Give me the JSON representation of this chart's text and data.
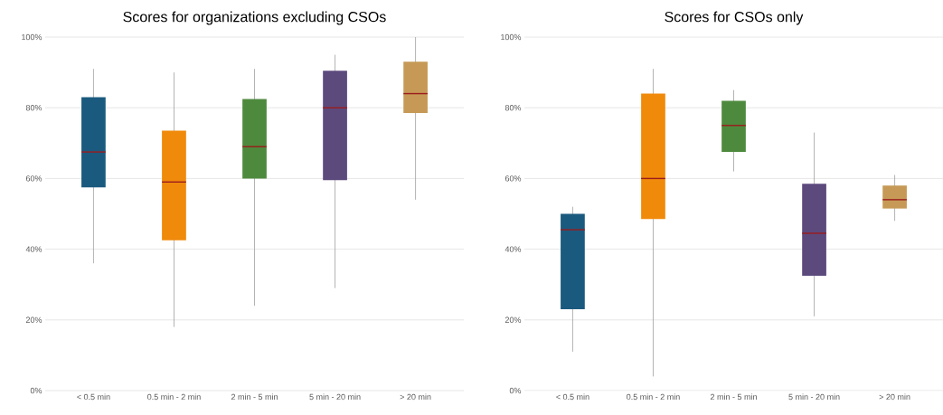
{
  "chart_data": [
    {
      "type": "box",
      "title": "Scores for organizations excluding CSOs",
      "categories": [
        "< 0.5 min",
        "0.5 min - 2 min",
        "2 min - 5 min",
        "5 min - 20 min",
        "> 20 min"
      ],
      "colors": [
        "#1b5a7f",
        "#f08a0b",
        "#4e8a3e",
        "#5c4a7d",
        "#c69a56"
      ],
      "boxes": [
        {
          "low": 36,
          "q1": 57.5,
          "median": 67.5,
          "q3": 83,
          "high": 91
        },
        {
          "low": 18,
          "q1": 42.5,
          "median": 59,
          "q3": 73.5,
          "high": 90
        },
        {
          "low": 24,
          "q1": 60,
          "median": 69,
          "q3": 82.5,
          "high": 91
        },
        {
          "low": 29,
          "q1": 59.5,
          "median": 80,
          "q3": 90.5,
          "high": 95
        },
        {
          "low": 54,
          "q1": 78.5,
          "median": 84,
          "q3": 93,
          "high": 100
        }
      ],
      "ylim": [
        0,
        100
      ],
      "yticks": [
        {
          "value": 0,
          "label": "0%"
        },
        {
          "value": 20,
          "label": "20%"
        },
        {
          "value": 40,
          "label": "40%"
        },
        {
          "value": 60,
          "label": "60%"
        },
        {
          "value": 80,
          "label": "80%"
        },
        {
          "value": 100,
          "label": "100%"
        }
      ],
      "grid": "y"
    },
    {
      "type": "box",
      "title": "Scores for CSOs only",
      "categories": [
        "< 0.5 min",
        "0.5 min - 2 min",
        "2 min - 5 min",
        "5 min - 20 min",
        "> 20 min"
      ],
      "colors": [
        "#1b5a7f",
        "#f08a0b",
        "#4e8a3e",
        "#5c4a7d",
        "#c69a56"
      ],
      "boxes": [
        {
          "low": 11,
          "q1": 23,
          "median": 45.5,
          "q3": 50,
          "high": 52
        },
        {
          "low": 4,
          "q1": 48.5,
          "median": 60,
          "q3": 84,
          "high": 91
        },
        {
          "low": 62,
          "q1": 67.5,
          "median": 75,
          "q3": 82,
          "high": 85
        },
        {
          "low": 21,
          "q1": 32.5,
          "median": 44.5,
          "q3": 58.5,
          "high": 73
        },
        {
          "low": 48,
          "q1": 51.5,
          "median": 54,
          "q3": 58,
          "high": 61
        }
      ],
      "ylim": [
        0,
        100
      ],
      "yticks": [
        {
          "value": 0,
          "label": "0%"
        },
        {
          "value": 20,
          "label": "20%"
        },
        {
          "value": 40,
          "label": "40%"
        },
        {
          "value": 60,
          "label": "60%"
        },
        {
          "value": 80,
          "label": "80%"
        },
        {
          "value": 100,
          "label": "100%"
        }
      ],
      "grid": "y"
    }
  ]
}
